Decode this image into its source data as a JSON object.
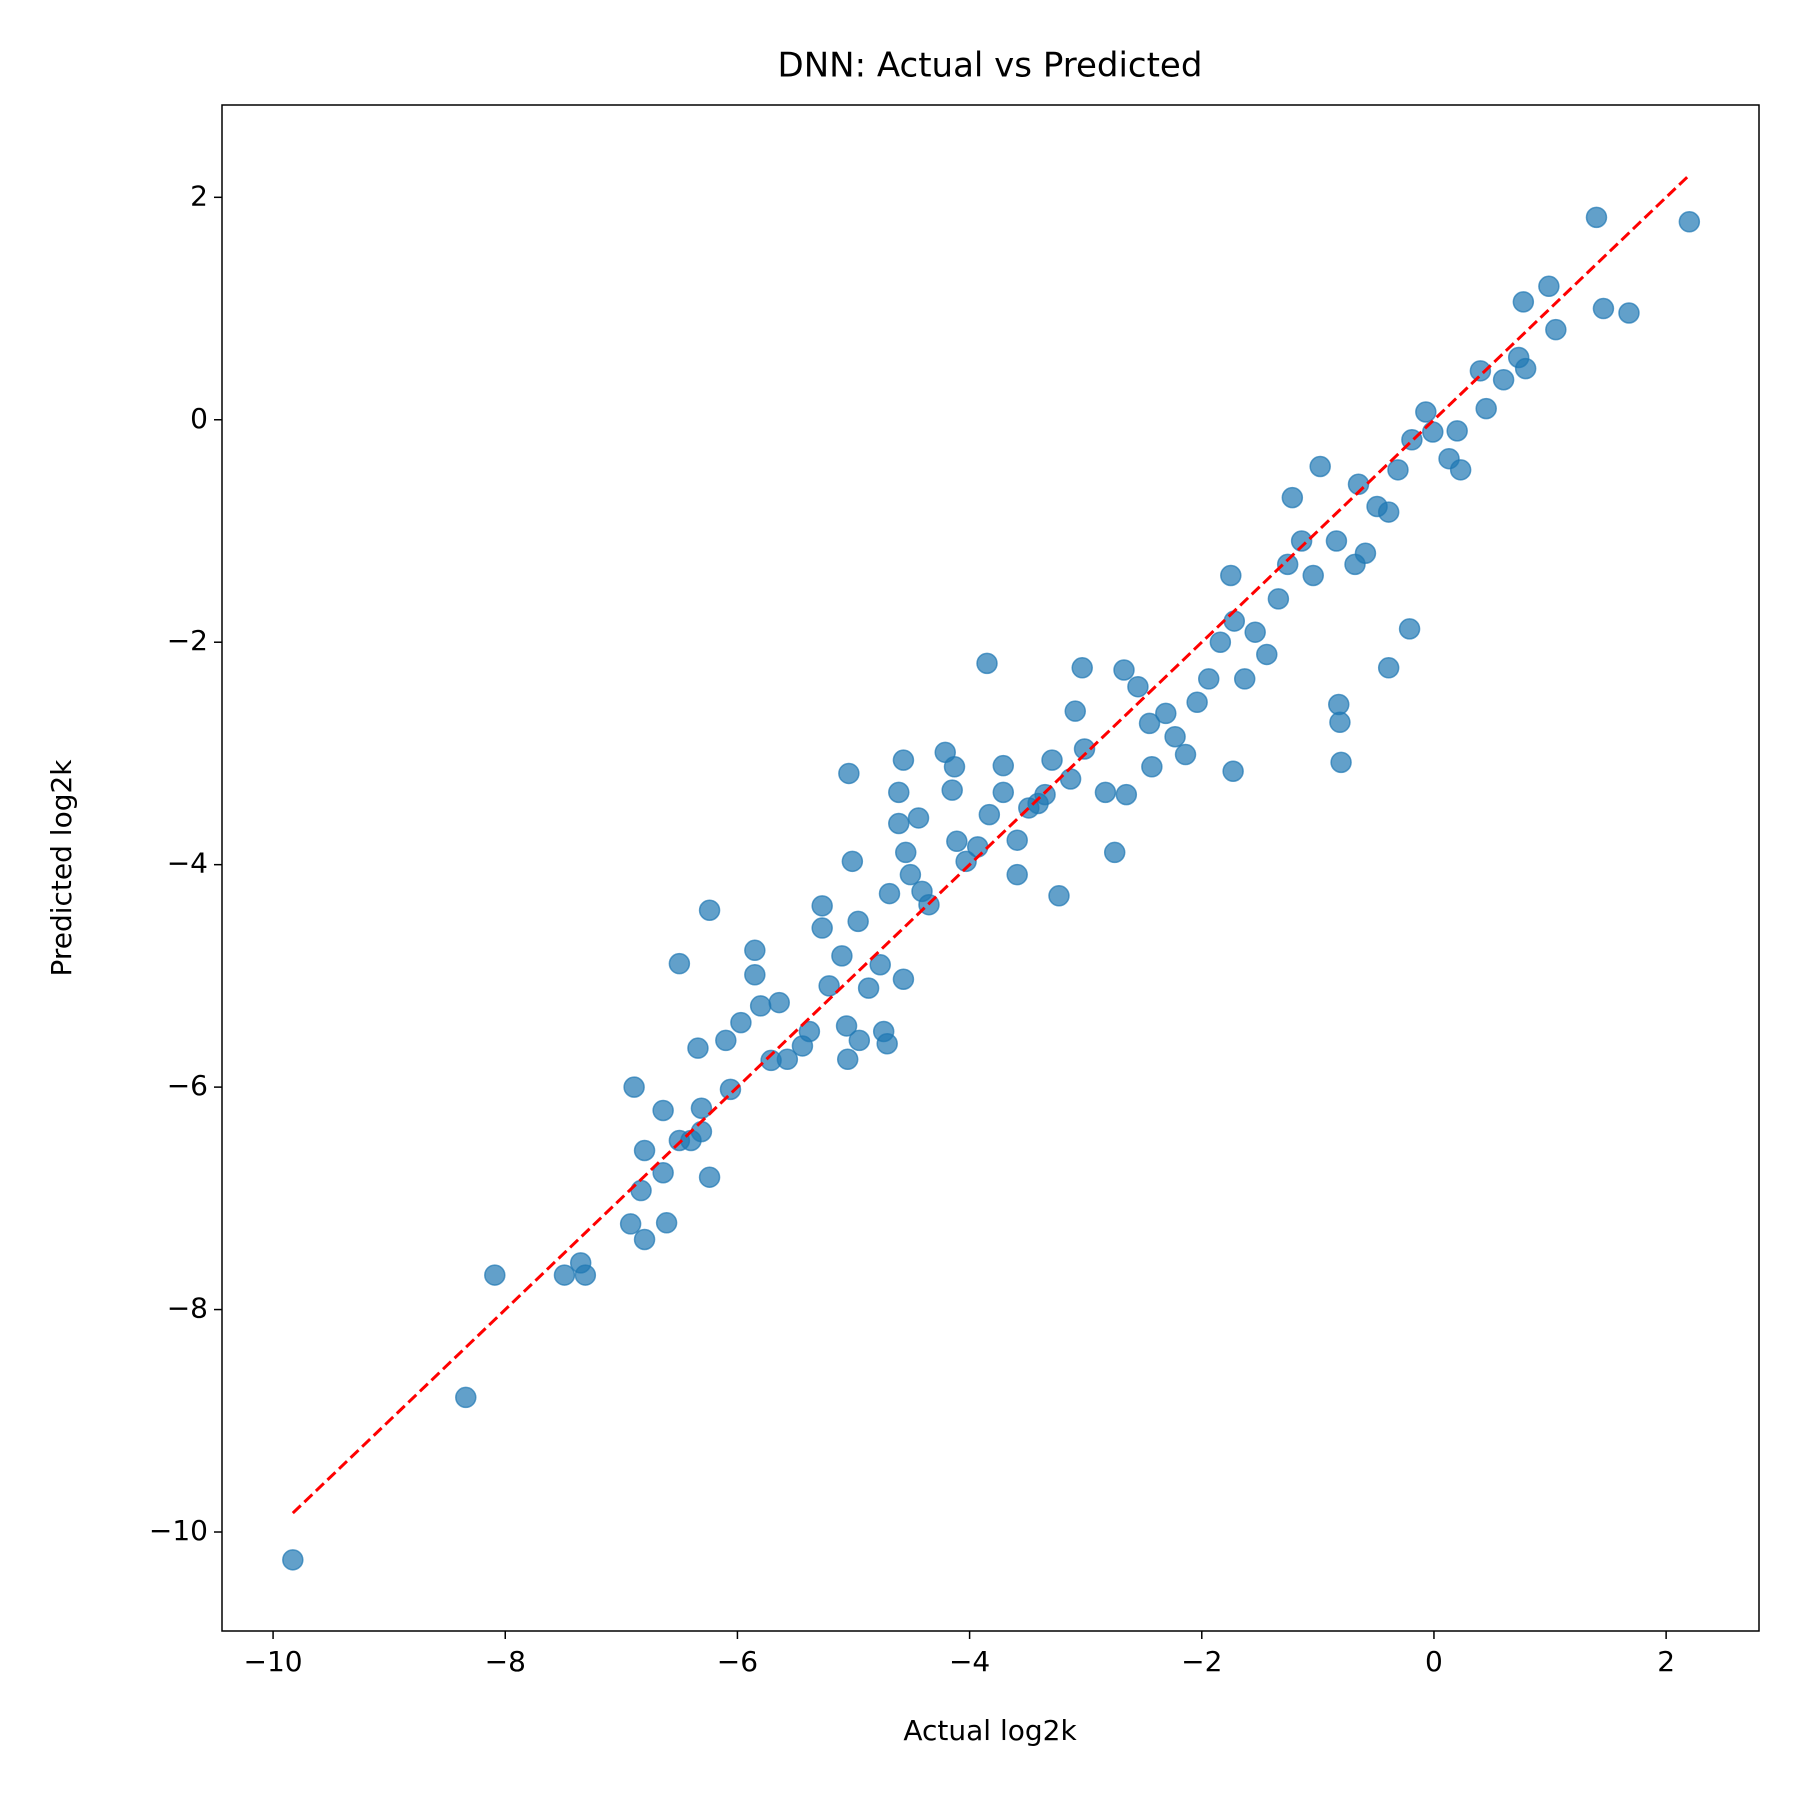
{
  "chart_data": {
    "type": "scatter",
    "title": "DNN: Actual vs Predicted",
    "xlabel": "Actual log2k",
    "ylabel": "Predicted log2k",
    "color": "#1f77b4",
    "alpha": 0.7,
    "x": [
      -9.83,
      -8.34,
      -8.09,
      -7.49,
      -7.31,
      -7.35,
      -6.92,
      -6.8,
      -6.61,
      -6.83,
      -6.8,
      -6.89,
      -6.64,
      -6.64,
      -6.5,
      -6.4,
      -6.31,
      -6.31,
      -6.24,
      -6.34,
      -6.1,
      -6.06,
      -5.97,
      -6.5,
      -6.24,
      -5.85,
      -5.85,
      -5.8,
      -5.64,
      -5.71,
      -5.57,
      -5.44,
      -5.38,
      -5.27,
      -5.27,
      -5.21,
      -5.1,
      -5.06,
      -5.05,
      -4.95,
      -4.96,
      -5.01,
      -5.04,
      -4.87,
      -4.77,
      -4.74,
      -4.71,
      -4.57,
      -4.57,
      -4.61,
      -4.61,
      -4.55,
      -4.69,
      -4.51,
      -4.41,
      -4.35,
      -4.44,
      -4.21,
      -4.13,
      -4.15,
      -4.11,
      -4.03,
      -3.93,
      -3.85,
      -3.83,
      -3.71,
      -3.59,
      -3.59,
      -3.71,
      -3.49,
      -3.41,
      -3.35,
      -3.23,
      -3.29,
      -3.13,
      -3.09,
      -3.03,
      -3.01,
      -2.83,
      -2.75,
      -2.67,
      -2.65,
      -2.55,
      -2.45,
      -2.43,
      -2.31,
      -2.23,
      -2.14,
      -2.04,
      -1.94,
      -1.84,
      -1.75,
      -1.73,
      -1.63,
      -1.72,
      -1.54,
      -1.44,
      -1.34,
      -1.26,
      -1.22,
      -1.14,
      -1.04,
      -0.98,
      -0.84,
      -0.82,
      -0.81,
      -0.8,
      -0.68,
      -0.65,
      -0.59,
      -0.49,
      -0.39,
      -0.39,
      -0.31,
      -0.21,
      -0.19,
      -0.07,
      -0.01,
      0.13,
      0.2,
      0.23,
      0.4,
      0.45,
      0.6,
      0.73,
      0.77,
      0.79,
      0.99,
      1.05,
      1.4,
      1.46,
      1.68,
      2.2
    ],
    "values": [
      -10.25,
      -8.79,
      -7.69,
      -7.69,
      -7.69,
      -7.58,
      -7.23,
      -7.37,
      -7.22,
      -6.93,
      -6.57,
      -6.0,
      -6.21,
      -6.77,
      -6.48,
      -6.48,
      -6.4,
      -6.19,
      -6.81,
      -5.65,
      -5.58,
      -6.02,
      -5.42,
      -4.89,
      -4.41,
      -4.77,
      -4.99,
      -5.27,
      -5.24,
      -5.76,
      -5.75,
      -5.63,
      -5.5,
      -4.37,
      -4.57,
      -5.09,
      -4.82,
      -5.45,
      -5.75,
      -5.58,
      -4.51,
      -3.97,
      -3.18,
      -5.11,
      -4.9,
      -5.5,
      -5.61,
      -5.03,
      -3.06,
      -3.35,
      -3.63,
      -3.89,
      -4.26,
      -4.09,
      -4.24,
      -4.36,
      -3.58,
      -2.99,
      -3.12,
      -3.33,
      -3.79,
      -3.97,
      -3.84,
      -2.19,
      -3.55,
      -3.35,
      -3.78,
      -4.09,
      -3.11,
      -3.49,
      -3.45,
      -3.37,
      -4.28,
      -3.06,
      -3.23,
      -2.62,
      -2.23,
      -2.96,
      -3.35,
      -3.89,
      -2.25,
      -3.37,
      -2.4,
      -2.73,
      -3.12,
      -2.64,
      -2.85,
      -3.01,
      -2.54,
      -2.33,
      -2.0,
      -1.4,
      -3.16,
      -2.33,
      -1.81,
      -1.91,
      -2.11,
      -1.61,
      -1.3,
      -0.7,
      -1.09,
      -1.4,
      -0.42,
      -1.09,
      -2.56,
      -2.72,
      -3.08,
      -1.3,
      -0.58,
      -1.2,
      -0.78,
      -2.23,
      -0.83,
      -0.45,
      -1.88,
      -0.18,
      0.07,
      -0.11,
      -0.35,
      -0.1,
      -0.45,
      0.44,
      0.1,
      0.36,
      0.56,
      1.06,
      0.46,
      1.2,
      0.81,
      1.82,
      1.0,
      0.96,
      1.78
    ],
    "reference_line": {
      "x": [
        -9.83,
        2.2
      ],
      "y": [
        -9.83,
        2.2
      ],
      "color": "red"
    },
    "xlim": [
      -10.44,
      2.8
    ],
    "ylim": [
      -10.89,
      2.83
    ],
    "xticks": [
      {
        "value": -10,
        "label": "−10"
      },
      {
        "value": -8,
        "label": "−8"
      },
      {
        "value": -6,
        "label": "−6"
      },
      {
        "value": -4,
        "label": "−4"
      },
      {
        "value": -2,
        "label": "−2"
      },
      0,
      2
    ],
    "yticks": [
      {
        "value": -10,
        "label": "−10"
      },
      {
        "value": -8,
        "label": "−8"
      },
      {
        "value": -6,
        "label": "−6"
      },
      {
        "value": -4,
        "label": "−4"
      },
      {
        "value": -2,
        "label": "−2"
      },
      0,
      2
    ]
  }
}
